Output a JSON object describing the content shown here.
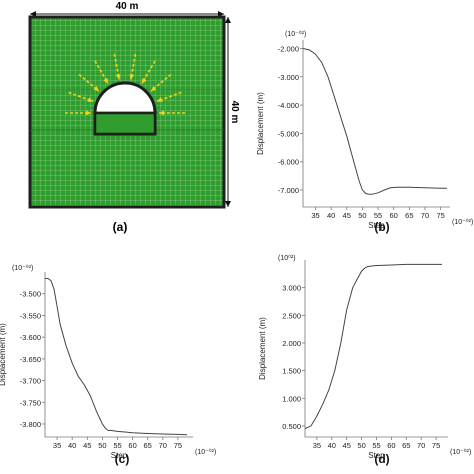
{
  "panel_a": {
    "label": "(a)",
    "width_label": "40 m",
    "height_label": "40 m",
    "colors": {
      "mesh": "#2f9e2f",
      "grid": "#b8e2b3",
      "border": "#1f1f1f",
      "arrows": "#f2d21a",
      "tunnel": "#ffffff"
    }
  },
  "chart_data": [
    {
      "id": "b",
      "type": "line",
      "panel_label": "(b)",
      "ylabel": "Displacement (m)",
      "xlabel": "Step",
      "y_multiplier": "(10⁻⁰²)",
      "x_multiplier": "(10⁻⁰²)",
      "xticks": [
        35,
        40,
        45,
        50,
        55,
        60,
        65,
        70,
        75
      ],
      "yticks": [
        -2.0,
        -3.0,
        -4.0,
        -5.0,
        -6.0,
        -7.0
      ],
      "ytick_labels": [
        "-2.000",
        "-3.000",
        "-4.000",
        "-5.000",
        "-6.000",
        "-7.000"
      ],
      "xlim": [
        31,
        78
      ],
      "ylim": [
        -7.6,
        -1.7
      ],
      "series": [
        {
          "color": "#444444",
          "x": [
            31,
            33,
            35,
            37,
            39,
            41,
            43,
            45,
            47,
            49,
            50,
            51,
            52,
            53,
            55,
            57,
            59,
            61,
            65,
            70,
            75,
            77
          ],
          "y": [
            -2.0,
            -2.05,
            -2.2,
            -2.5,
            -3.0,
            -3.7,
            -4.4,
            -5.1,
            -5.9,
            -6.7,
            -7.0,
            -7.12,
            -7.15,
            -7.15,
            -7.1,
            -7.0,
            -6.92,
            -6.9,
            -6.9,
            -6.92,
            -6.94,
            -6.94
          ]
        }
      ]
    },
    {
      "id": "c",
      "type": "line",
      "panel_label": "(c)",
      "ylabel": "Displacement (m)",
      "xlabel": "Step",
      "y_multiplier": "(10⁻⁰²)",
      "x_multiplier": "(10⁻⁰²)",
      "xticks": [
        35,
        40,
        45,
        50,
        55,
        60,
        65,
        70,
        75
      ],
      "yticks": [
        -3.5,
        -3.55,
        -3.6,
        -3.65,
        -3.7,
        -3.75,
        -3.8
      ],
      "ytick_labels": [
        "-3.500",
        "-3.550",
        "-3.600",
        "-3.650",
        "-3.700",
        "-3.750",
        "-3.800"
      ],
      "xlim": [
        31,
        80
      ],
      "ylim": [
        -3.83,
        -3.45
      ],
      "series": [
        {
          "color": "#444444",
          "x": [
            31,
            32,
            33,
            34,
            35,
            36,
            38,
            40,
            42,
            44,
            46,
            48,
            50,
            51,
            52,
            53,
            55,
            60,
            65,
            70,
            75,
            78
          ],
          "y": [
            -3.465,
            -3.465,
            -3.47,
            -3.49,
            -3.53,
            -3.57,
            -3.62,
            -3.66,
            -3.69,
            -3.71,
            -3.735,
            -3.77,
            -3.8,
            -3.81,
            -3.815,
            -3.815,
            -3.817,
            -3.82,
            -3.822,
            -3.823,
            -3.824,
            -3.825
          ]
        }
      ]
    },
    {
      "id": "d",
      "type": "line",
      "panel_label": "(d)",
      "ylabel": "Displacement (m)",
      "xlabel": "Step",
      "y_multiplier": "(10⁰²)",
      "x_multiplier": "(10⁻⁰²)",
      "xticks": [
        35,
        40,
        45,
        50,
        55,
        60,
        65,
        70,
        75
      ],
      "yticks": [
        0.5,
        1.0,
        1.5,
        2.0,
        2.5,
        3.0
      ],
      "ytick_labels": [
        "0.500",
        "1.000",
        "1.500",
        "2.000",
        "2.500",
        "3.000"
      ],
      "xlim": [
        31,
        79
      ],
      "ylim": [
        0.3,
        3.5
      ],
      "series": [
        {
          "color": "#444444",
          "x": [
            31,
            33,
            35,
            37,
            39,
            41,
            43,
            45,
            47,
            49,
            50,
            51,
            52,
            53,
            55,
            60,
            65,
            70,
            75,
            77
          ],
          "y": [
            0.45,
            0.5,
            0.68,
            0.9,
            1.15,
            1.5,
            2.0,
            2.6,
            3.0,
            3.2,
            3.3,
            3.35,
            3.38,
            3.39,
            3.4,
            3.41,
            3.42,
            3.42,
            3.42,
            3.42
          ]
        }
      ]
    }
  ]
}
